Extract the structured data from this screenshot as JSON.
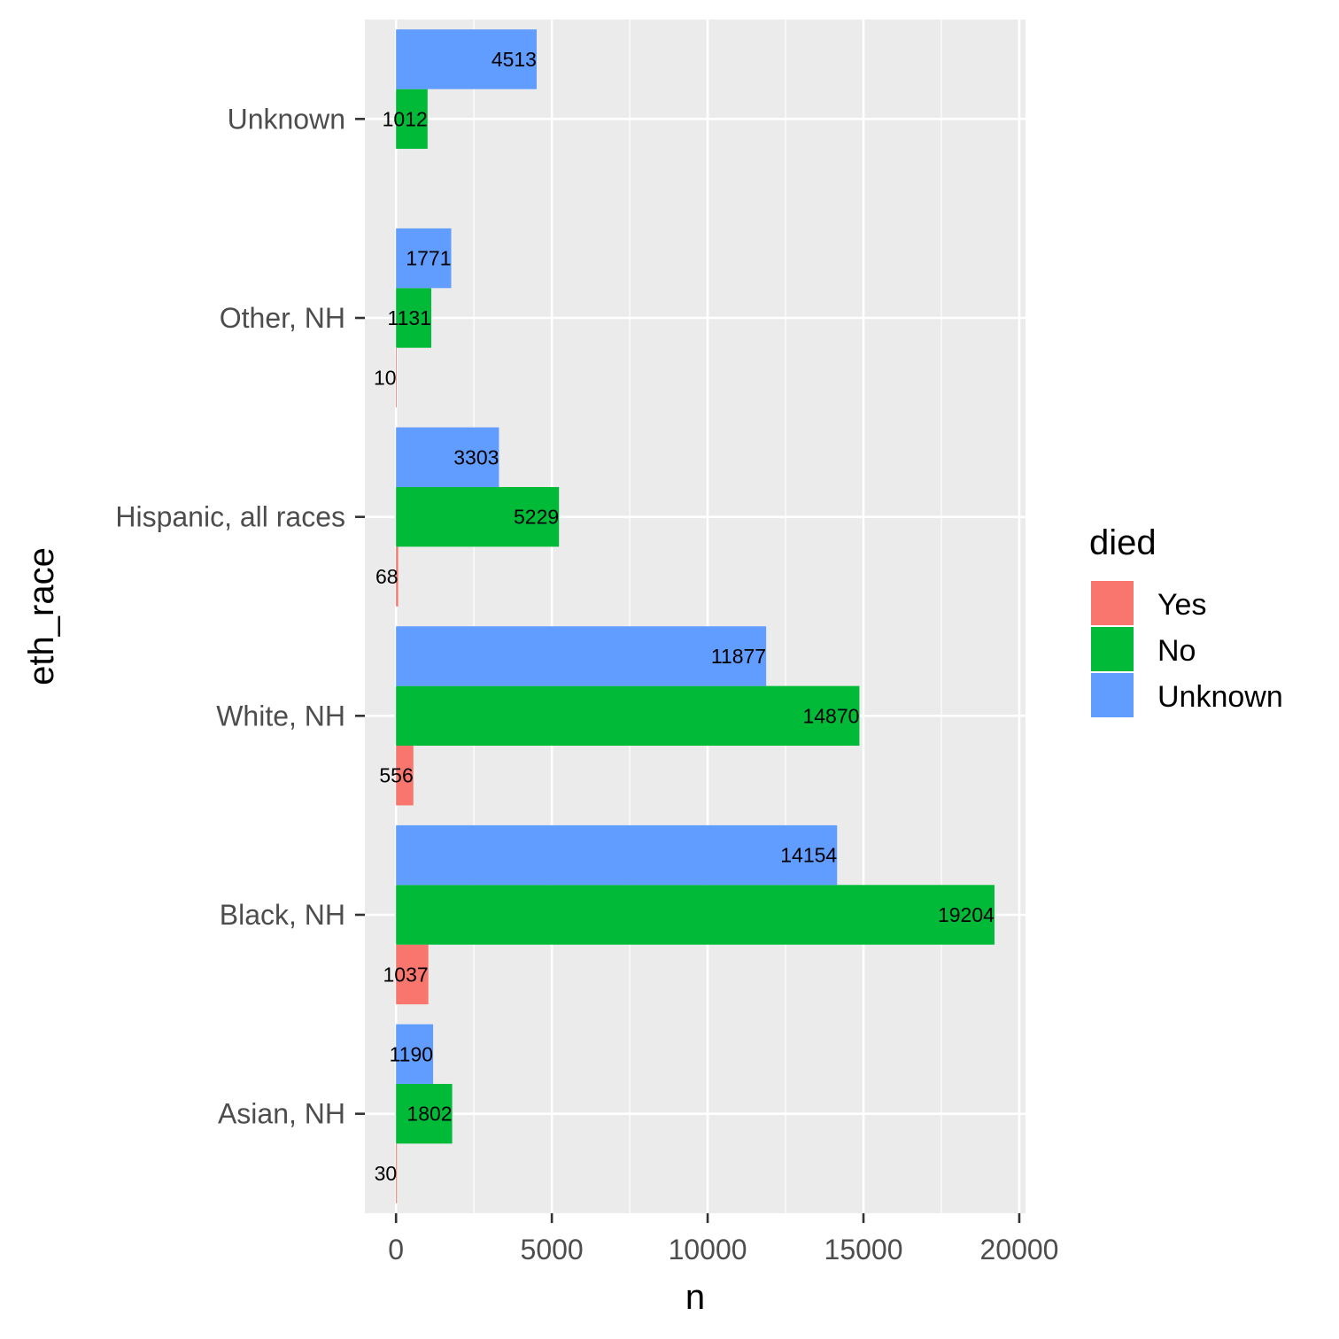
{
  "chart_data": {
    "type": "bar",
    "orientation": "horizontal",
    "xlabel": "n",
    "ylabel": "eth_race",
    "xlim": [
      -1000,
      20200
    ],
    "x_ticks": [
      0,
      5000,
      10000,
      15000,
      20000
    ],
    "x_tick_labels": [
      "0",
      "5000",
      "10000",
      "15000",
      "20000"
    ],
    "categories": [
      "Asian, NH",
      "Black, NH",
      "White, NH",
      "Hispanic, all races",
      "Other, NH",
      "Unknown"
    ],
    "series": [
      {
        "name": "Yes",
        "color": "#F8766D",
        "values": [
          30,
          1037,
          556,
          68,
          10,
          null
        ],
        "labels": [
          "30",
          "1037",
          "556",
          "68",
          "10",
          ""
        ]
      },
      {
        "name": "No",
        "color": "#00BA38",
        "values": [
          1802,
          19204,
          14870,
          5229,
          1131,
          1012
        ],
        "labels": [
          "1802",
          "19204",
          "14870",
          "5229",
          "1131",
          "1012"
        ]
      },
      {
        "name": "Unknown",
        "color": "#619CFF",
        "values": [
          1190,
          14154,
          11877,
          3303,
          1771,
          4513
        ],
        "labels": [
          "1190",
          "14154",
          "11877",
          "3303",
          "1771",
          "4513"
        ]
      }
    ],
    "legend": {
      "title": "died",
      "position": "right",
      "entries": [
        "Yes",
        "No",
        "Unknown"
      ]
    },
    "grid": true,
    "panel_background": "#EBEBEB",
    "grid_color": "#FFFFFF"
  }
}
